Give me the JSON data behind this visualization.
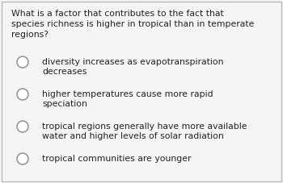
{
  "question_lines": [
    "What is a factor that contributes to the fact that",
    "species richness is higher in tropical than in temperate",
    "regions?"
  ],
  "options": [
    [
      "diversity increases as evapotranspiration",
      "decreases"
    ],
    [
      "higher temperatures cause more rapid",
      "speciation"
    ],
    [
      "tropical regions generally have more available",
      "water and higher levels of solar radiation"
    ],
    [
      "tropical communities are younger"
    ]
  ],
  "bg_color": "#f5f5f5",
  "border_color": "#bbbbbb",
  "text_color": "#222222",
  "question_fontsize": 7.8,
  "option_fontsize": 7.8,
  "circle_color": "#ffffff",
  "circle_edge_color": "#999999"
}
